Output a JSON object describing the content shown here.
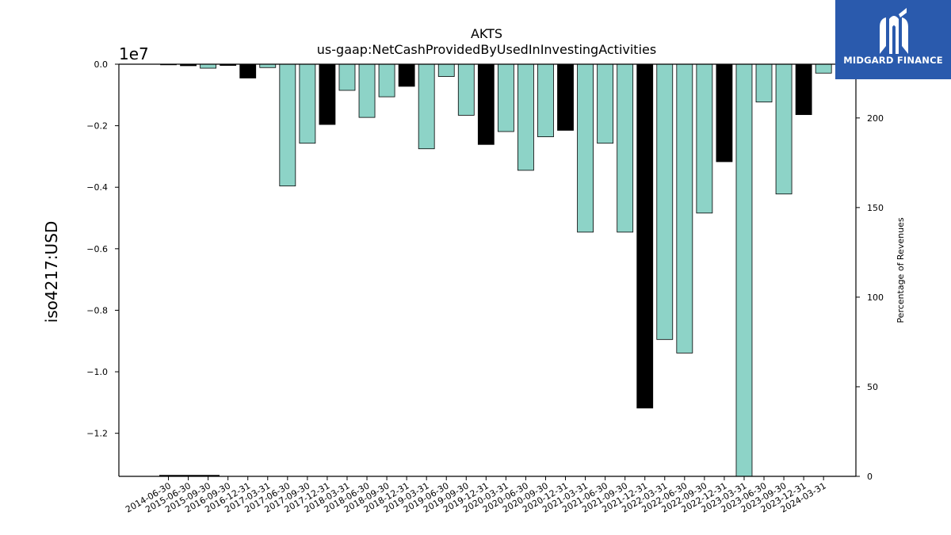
{
  "chart_data": {
    "type": "bar",
    "title": "AKTS",
    "subtitle": "us-gaap:NetCashProvidedByUsedInInvestingActivities",
    "ylabel": "iso4217:USD",
    "y_offset_label": "1e7",
    "y2label": "Percentage of Revenues",
    "ylim": [
      -13400000,
      0
    ],
    "y2lim": [
      0,
      230
    ],
    "yticks": [
      0.0,
      -0.2,
      -0.4,
      -0.6,
      -0.8,
      -1.0,
      -1.2
    ],
    "yticks_labels": [
      "0.0",
      "−0.2",
      "−0.4",
      "−0.6",
      "−0.8",
      "−1.0",
      "−1.2"
    ],
    "y2ticks": [
      0,
      50,
      100,
      150,
      200
    ],
    "categories": [
      "2014-06-30",
      "2015-06-30",
      "2015-09-30",
      "2016-09-30",
      "2016-12-31",
      "2017-03-31",
      "2017-06-30",
      "2017-09-30",
      "2017-12-31",
      "2018-03-31",
      "2018-06-30",
      "2018-09-30",
      "2018-12-31",
      "2019-03-31",
      "2019-06-30",
      "2019-09-30",
      "2019-12-31",
      "2020-03-31",
      "2020-06-30",
      "2020-09-30",
      "2020-12-31",
      "2021-03-31",
      "2021-06-30",
      "2021-09-30",
      "2021-12-31",
      "2022-03-31",
      "2022-06-30",
      "2022-09-30",
      "2022-12-31",
      "2023-03-31",
      "2023-06-30",
      "2023-09-30",
      "2023-12-31",
      "2024-03-31"
    ],
    "values": [
      0,
      -50000,
      -130000,
      -40000,
      -450000,
      -110000,
      -3960000,
      -2570000,
      -1960000,
      -850000,
      -1730000,
      -1060000,
      -720000,
      -2750000,
      -400000,
      -1660000,
      -2610000,
      -2190000,
      -3450000,
      -2360000,
      -2150000,
      -5460000,
      -2570000,
      -5460000,
      -11180000,
      -8950000,
      -9390000,
      -4840000,
      -3170000,
      -13400000,
      -1230000,
      -4220000,
      -1640000,
      -290000
    ],
    "highlight": [
      false,
      true,
      false,
      true,
      true,
      false,
      false,
      false,
      true,
      false,
      false,
      false,
      true,
      false,
      false,
      false,
      true,
      false,
      false,
      false,
      true,
      false,
      false,
      false,
      true,
      false,
      false,
      false,
      true,
      false,
      false,
      false,
      true,
      false
    ],
    "colors": {
      "normal": "#8dd3c7",
      "highlight": "#000000",
      "edge": "#000000"
    },
    "logo": {
      "text": "MIDGARD FINANCE",
      "background": "#2a5aad"
    }
  }
}
